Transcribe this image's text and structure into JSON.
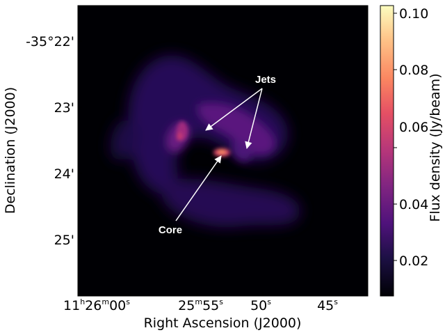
{
  "image": {
    "x_axis_label": "Right Ascension (J2000)",
    "y_axis_label": "Declination (J2000)",
    "ra_ticks": [
      {
        "h": "11",
        "m": "26",
        "s": "00"
      },
      {
        "h": "",
        "m": "25",
        "s": "55"
      },
      {
        "h": "",
        "m": "",
        "s": "50"
      },
      {
        "h": "",
        "m": "",
        "s": "45"
      }
    ],
    "dec_ticks": [
      "-35°22'",
      "23'",
      "24'",
      "25'"
    ],
    "colorbar": {
      "label": "Flux density (Jy/beam)",
      "ticks": [
        "0.02",
        "0.04",
        "0.06",
        "0.08",
        "0.10"
      ],
      "colormap": "magma"
    },
    "annotations": {
      "jets": "Jets",
      "core": "Core"
    },
    "colors": {
      "background": "#000004",
      "arrow": "#ffffff"
    }
  }
}
